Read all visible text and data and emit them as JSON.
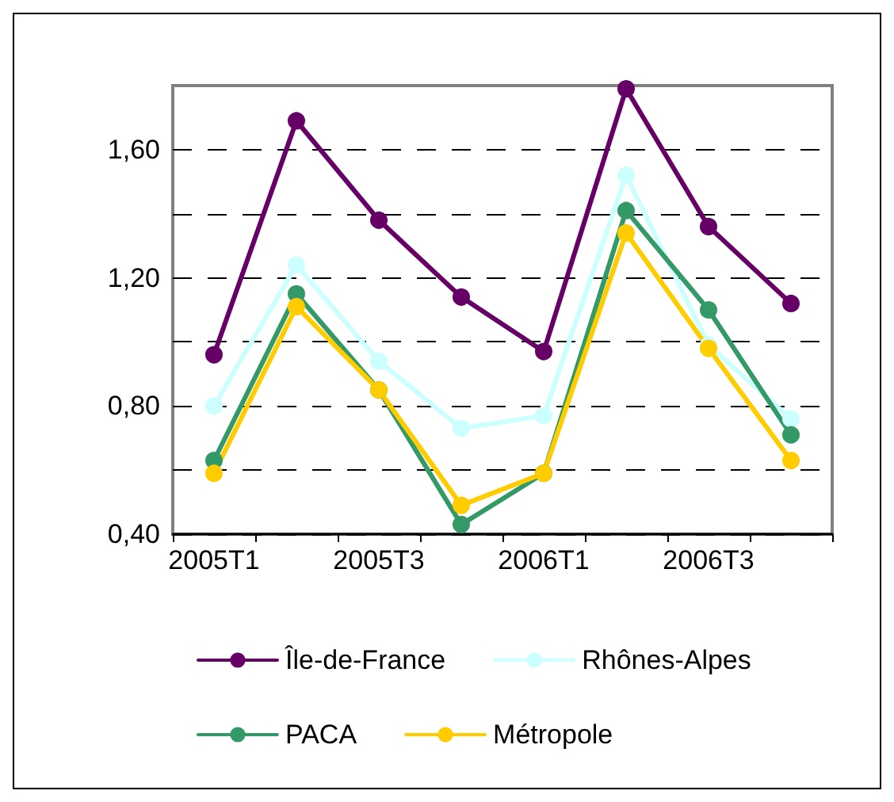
{
  "chart_data": {
    "type": "line",
    "categories": [
      "2005T1",
      null,
      "2005T3",
      null,
      "2006T1",
      null,
      "2006T3",
      null
    ],
    "series": [
      {
        "name": "Île-de-France",
        "color": "#660066",
        "values": [
          0.96,
          1.69,
          1.38,
          1.14,
          0.97,
          1.79,
          1.36,
          1.12
        ]
      },
      {
        "name": "Rhônes-Alpes",
        "color": "#ccffff",
        "values": [
          0.8,
          1.24,
          0.94,
          0.73,
          0.77,
          1.52,
          0.99,
          0.76
        ]
      },
      {
        "name": "PACA",
        "color": "#339966",
        "values": [
          0.63,
          1.15,
          0.85,
          0.43,
          0.59,
          1.41,
          1.1,
          0.71
        ]
      },
      {
        "name": "Métropole",
        "color": "#ffcc00",
        "values": [
          0.59,
          1.11,
          0.85,
          0.49,
          0.59,
          1.34,
          0.98,
          0.63
        ]
      }
    ],
    "ylim": [
      0.4,
      1.8
    ],
    "yticks": [
      {
        "value": 0.4,
        "label": "0,40"
      },
      {
        "value": 0.6,
        "label": null
      },
      {
        "value": 0.8,
        "label": "0,80"
      },
      {
        "value": 1.0,
        "label": null
      },
      {
        "value": 1.2,
        "label": "1,20"
      },
      {
        "value": 1.4,
        "label": null
      },
      {
        "value": 1.6,
        "label": "1,60"
      }
    ],
    "grid": "y",
    "legend": "bottom",
    "marker": "circle",
    "line_style": "solid"
  }
}
